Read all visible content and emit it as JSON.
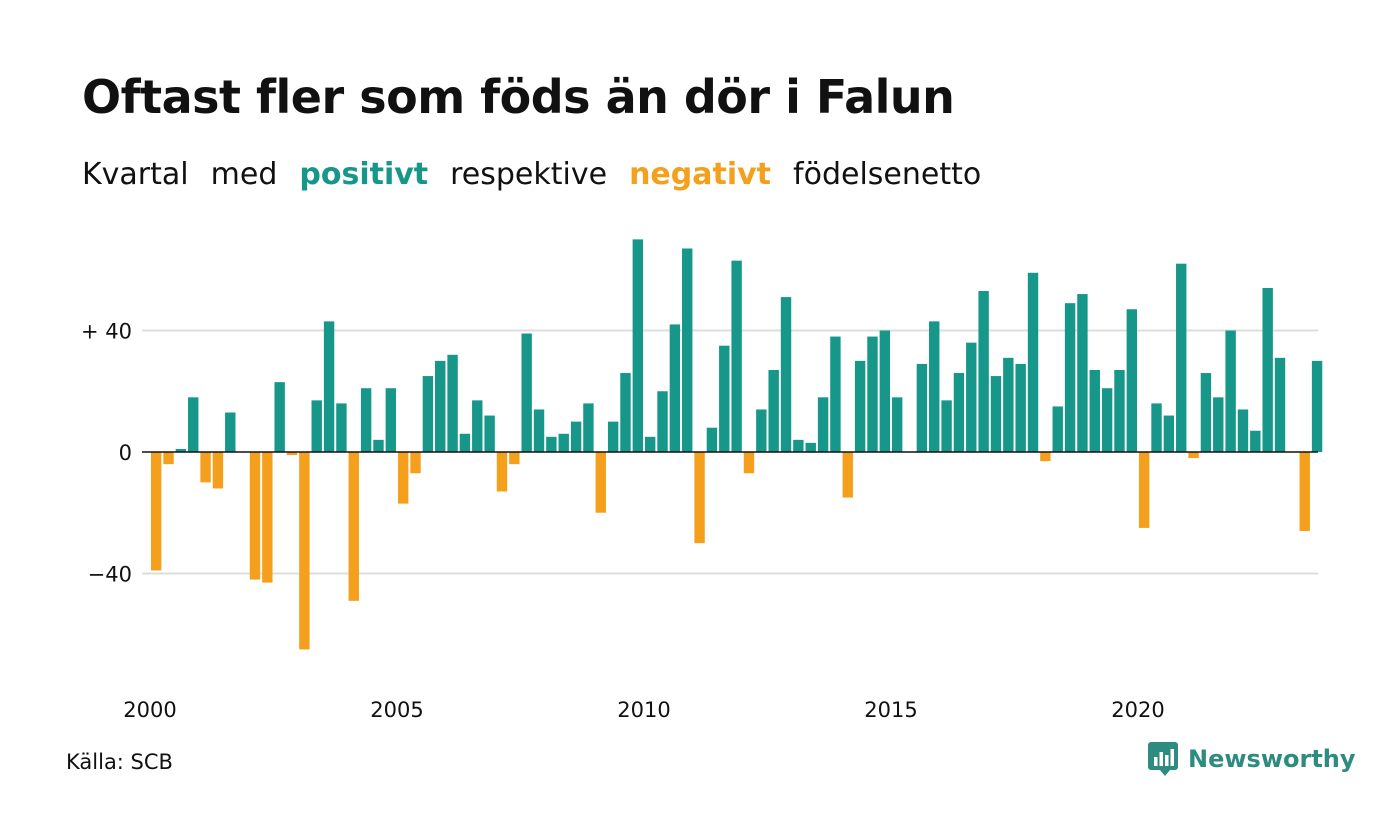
{
  "title": "Oftast fler som föds än dör i Falun",
  "subtitle": {
    "part1": "Kvartal",
    "part2": "med",
    "positive": "positivt",
    "part3": "respektive",
    "negative": "negativt",
    "part4": "födelsenetto"
  },
  "colors": {
    "positive": "#16978a",
    "negative": "#f5a01d",
    "grid": "#dddddd",
    "axis": "#111111"
  },
  "source": "Källa: SCB",
  "brand": {
    "name": "Newsworthy",
    "icon": "newsworthy-logo-icon",
    "color": "#2e8b80"
  },
  "chart_data": {
    "type": "bar",
    "x_start": "2000 Q1",
    "x_ticks": [
      "2000",
      "2005",
      "2010",
      "2015",
      "2020"
    ],
    "y_ticks": [
      {
        "value": 40,
        "label": "+ 40"
      },
      {
        "value": 0,
        "label": "0"
      },
      {
        "value": -40,
        "label": "−40"
      }
    ],
    "ylim": [
      -70,
      70
    ],
    "series": [
      {
        "values": [
          -39,
          -4,
          1,
          18,
          -10,
          -12,
          13,
          0,
          -42,
          -43,
          23,
          -1,
          -65,
          17,
          43,
          16,
          -49,
          21,
          4,
          21,
          -17,
          -7,
          25,
          30,
          32,
          6,
          17,
          12,
          -13,
          -4,
          39,
          14,
          5,
          6,
          10,
          16,
          -20,
          10,
          26,
          70,
          5,
          20,
          42,
          67,
          -30,
          8,
          35,
          63,
          -7,
          14,
          27,
          51,
          4,
          3,
          18,
          38,
          -15,
          30,
          38,
          40,
          18,
          0,
          29,
          43,
          17,
          26,
          36,
          53,
          25,
          31,
          29,
          59,
          -3,
          15,
          49,
          52,
          27,
          21,
          27,
          47,
          -25,
          16,
          12,
          62,
          -2,
          26,
          18,
          40,
          14,
          7,
          54,
          31,
          0,
          -26,
          30
        ]
      }
    ]
  }
}
